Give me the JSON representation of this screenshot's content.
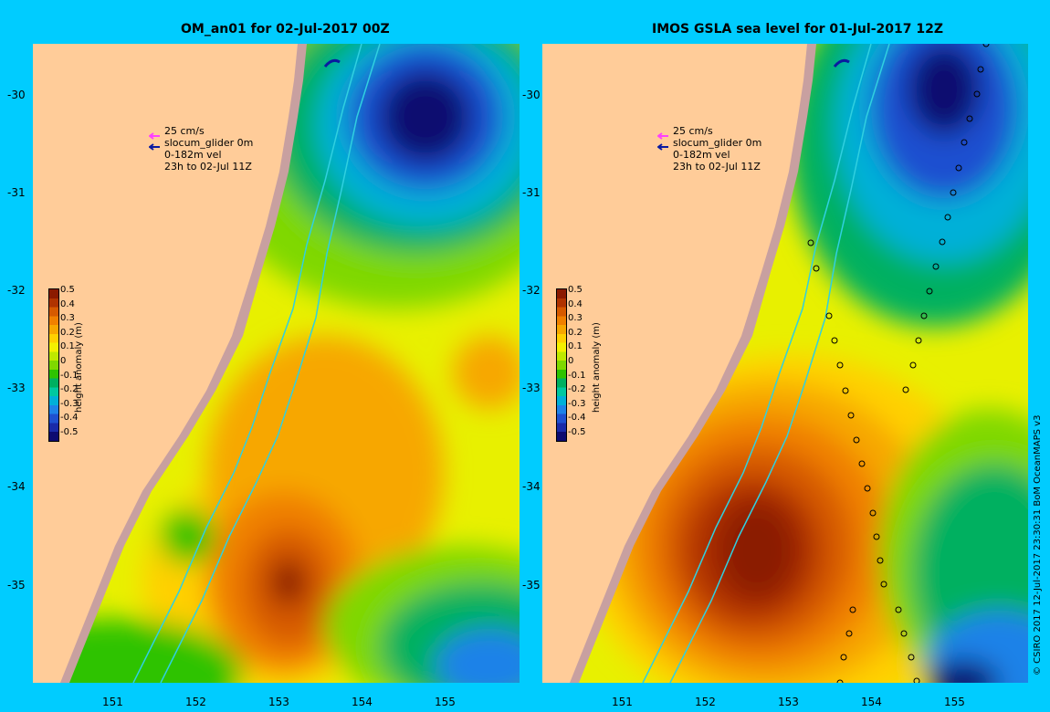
{
  "left_panel": {
    "title": "OM_an01 for 02-Jul-2017 00Z",
    "legend": [
      "25 cm/s",
      "slocum_glider 0m",
      "0-182m vel",
      "23h to 02-Jul 11Z"
    ],
    "colorbar_title": "height anomaly (m)"
  },
  "right_panel": {
    "title": "IMOS GSLA sea level  for 01-Jul-2017 12Z",
    "legend": [
      "25 cm/s",
      "slocum_glider 0m",
      "0-182m vel",
      "23h to 02-Jul 11Z"
    ],
    "colorbar_title": "height anomaly (m)"
  },
  "axes": {
    "lat_ticks": [
      "-30",
      "-31",
      "-32",
      "-33",
      "-34",
      "-35"
    ],
    "lon_ticks": [
      "151",
      "152",
      "153",
      "154",
      "155"
    ]
  },
  "colorbar": {
    "ticks": [
      "0.5",
      "0.4",
      "0.3",
      "0.2",
      "0.1",
      "0",
      "-0.1",
      "-0.2",
      "-0.3",
      "-0.4",
      "-0.5"
    ],
    "colors": [
      "#8b1a00",
      "#b03300",
      "#d65a00",
      "#f08000",
      "#f7a700",
      "#ffd000",
      "#f3f000",
      "#bfe800",
      "#7fd800",
      "#2ec300",
      "#00b060",
      "#00c8a0",
      "#00b0d8",
      "#1e82e8",
      "#1f50d0",
      "#1a2aa8",
      "#0d0b70"
    ]
  },
  "colors": {
    "background": "#00ccff",
    "land": "#ffcc99",
    "shelf": "#c8a0a0",
    "isobath": "#30d0e0",
    "glider_arrow": "#ff40ff",
    "velocity_arrow": "#0a1aa0"
  },
  "credit": "© CSIRO 2017  12-Jul-2017 23:30:31 BoM OceanMAPS v3"
}
